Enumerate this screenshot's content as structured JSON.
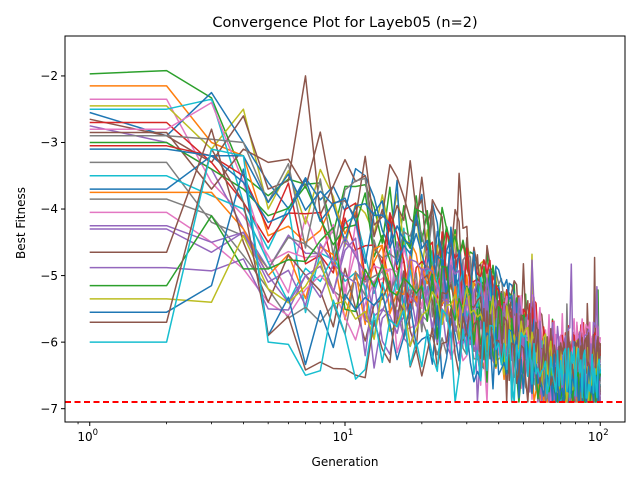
{
  "chart_data": {
    "type": "line",
    "title": "Convergence Plot for Layeb05 (n=2)",
    "xlabel": "Generation",
    "ylabel": "Best Fitness",
    "xscale": "log",
    "xlim": [
      0.8,
      125
    ],
    "ylim": [
      -7.2,
      -1.4
    ],
    "xticks": [
      {
        "value": 1,
        "base": "10",
        "exp": "0"
      },
      {
        "value": 10,
        "base": "10",
        "exp": "1"
      },
      {
        "value": 100,
        "base": "10",
        "exp": "2"
      }
    ],
    "yticks": [
      {
        "value": -2,
        "label": "−2"
      },
      {
        "value": -3,
        "label": "−3"
      },
      {
        "value": -4,
        "label": "−4"
      },
      {
        "value": -5,
        "label": "−5"
      },
      {
        "value": -6,
        "label": "−6"
      },
      {
        "value": -7,
        "label": "−7"
      }
    ],
    "reference_line": {
      "y": -6.9,
      "color": "#ff0000",
      "style": "dashed"
    },
    "grid": false,
    "legend": "none",
    "series_count": 30,
    "palette": [
      "#1f77b4",
      "#ff7f0e",
      "#2ca02c",
      "#d62728",
      "#9467bd",
      "#8c564b",
      "#e377c2",
      "#7f7f7f",
      "#bcbd22",
      "#17becf"
    ],
    "series": [
      {
        "color": "#2ca02c",
        "start": -1.97,
        "mid": [
          -1.92,
          -2.33,
          -3.5,
          -3.8
        ],
        "final": -6.4
      },
      {
        "color": "#ff7f0e",
        "start": -2.15,
        "mid": [
          -2.15,
          -3.0,
          -3.2,
          -4.4
        ],
        "final": -6.8
      },
      {
        "color": "#e377c2",
        "start": -2.35,
        "mid": [
          -2.35,
          -3.6,
          -4.1,
          -4.7
        ],
        "final": -6.2
      },
      {
        "color": "#bcbd22",
        "start": -2.45,
        "mid": [
          -2.45,
          -3.1,
          -2.5,
          -4.0
        ],
        "final": -6.6
      },
      {
        "color": "#17becf",
        "start": -2.5,
        "mid": [
          -2.5,
          -2.35,
          -3.9,
          -4.6
        ],
        "final": -6.5
      },
      {
        "color": "#1f77b4",
        "start": -2.55,
        "mid": [
          -2.9,
          -2.25,
          -3.0,
          -3.6
        ],
        "final": -6.7
      },
      {
        "color": "#8c564b",
        "start": -2.65,
        "mid": [
          -2.9,
          -3.3,
          -2.6,
          -3.7
        ],
        "final": -6.3
      },
      {
        "color": "#d62728",
        "start": -2.7,
        "mid": [
          -2.7,
          -3.3,
          -3.9,
          -4.5
        ],
        "final": -6.1
      },
      {
        "color": "#9467bd",
        "start": -2.75,
        "mid": [
          -3.0,
          -3.4,
          -4.3,
          -4.9
        ],
        "final": -6.4
      },
      {
        "color": "#e377c2",
        "start": -2.8,
        "mid": [
          -2.8,
          -2.4,
          -3.6,
          -4.8
        ],
        "final": -6.0
      },
      {
        "color": "#8c564b",
        "start": -2.85,
        "mid": [
          -2.85,
          -3.7,
          -3.1,
          -3.3
        ],
        "final": -6.9
      },
      {
        "color": "#7f7f7f",
        "start": -2.9,
        "mid": [
          -2.9,
          -2.95,
          -3.0,
          -3.9
        ],
        "final": -6.7
      },
      {
        "color": "#2ca02c",
        "start": -3.0,
        "mid": [
          -3.0,
          -3.4,
          -3.7,
          -4.1
        ],
        "final": -6.6
      },
      {
        "color": "#d62728",
        "start": -3.05,
        "mid": [
          -3.05,
          -3.2,
          -3.5,
          -4.3
        ],
        "final": -6.3
      },
      {
        "color": "#1f77b4",
        "start": -3.1,
        "mid": [
          -3.1,
          -3.2,
          -3.2,
          -3.9
        ],
        "final": -6.8
      },
      {
        "color": "#7f7f7f",
        "start": -3.3,
        "mid": [
          -3.3,
          -4.2,
          -4.4,
          -4.9
        ],
        "final": -6.5
      },
      {
        "color": "#17becf",
        "start": -3.5,
        "mid": [
          -3.5,
          -3.8,
          -4.0,
          -4.8
        ],
        "final": -6.6
      },
      {
        "color": "#1f77b4",
        "start": -3.7,
        "mid": [
          -3.7,
          -3.2,
          -3.6,
          -4.2
        ],
        "final": -6.4
      },
      {
        "color": "#ff7f0e",
        "start": -3.75,
        "mid": [
          -3.75,
          -3.75,
          -4.3,
          -5.0
        ],
        "final": -6.85
      },
      {
        "color": "#7f7f7f",
        "start": -3.85,
        "mid": [
          -3.85,
          -4.1,
          -4.7,
          -5.2
        ],
        "final": -6.7
      },
      {
        "color": "#e377c2",
        "start": -4.05,
        "mid": [
          -4.05,
          -4.5,
          -4.9,
          -5.4
        ],
        "final": -6.3
      },
      {
        "color": "#9467bd",
        "start": -4.25,
        "mid": [
          -4.25,
          -4.5,
          -4.35,
          -5.1
        ],
        "final": -6.1
      },
      {
        "color": "#9467bd",
        "start": -4.3,
        "mid": [
          -4.3,
          -4.65,
          -4.35,
          -5.0
        ],
        "final": -6.5
      },
      {
        "color": "#8c564b",
        "start": -4.65,
        "mid": [
          -4.65,
          -2.8,
          -4.5,
          -5.4
        ],
        "final": -6.2
      },
      {
        "color": "#9467bd",
        "start": -4.88,
        "mid": [
          -4.88,
          -4.93,
          -4.75,
          -5.5
        ],
        "final": -6.6
      },
      {
        "color": "#2ca02c",
        "start": -5.15,
        "mid": [
          -5.15,
          -4.1,
          -4.9,
          -4.9
        ],
        "final": -6.7
      },
      {
        "color": "#bcbd22",
        "start": -5.35,
        "mid": [
          -5.35,
          -5.4,
          -4.4,
          -5.2
        ],
        "final": -6.4
      },
      {
        "color": "#1f77b4",
        "start": -5.55,
        "mid": [
          -5.55,
          -5.15,
          -3.4,
          -5.9
        ],
        "final": -6.6
      },
      {
        "color": "#8c564b",
        "start": -5.7,
        "mid": [
          -5.7,
          -3.1,
          -3.9,
          -5.9
        ],
        "final": -6.3
      },
      {
        "color": "#17becf",
        "start": -6.0,
        "mid": [
          -6.0,
          -3.1,
          -3.2,
          -6.0
        ],
        "final": -6.5
      }
    ]
  }
}
